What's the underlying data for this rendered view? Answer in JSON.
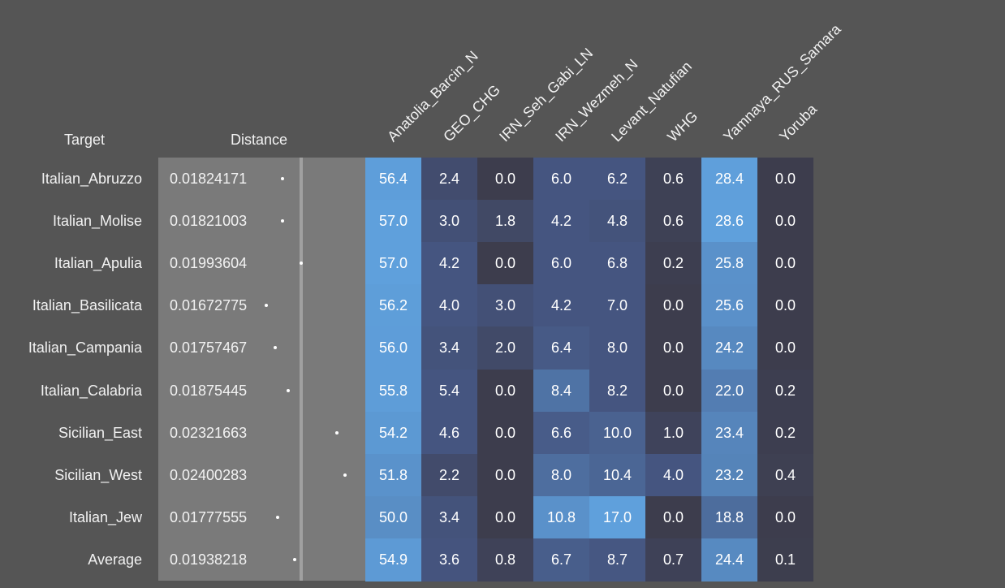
{
  "chart_data": {
    "type": "heatmap",
    "row_header": "Target",
    "distance_header": "Distance",
    "columns": [
      "Anatolia_Barcin_N",
      "GEO_CHG",
      "IRN_Seh_Gabi_LN",
      "IRN_Wezmeh_N",
      "Levant_Natufian",
      "WHG",
      "Yamnaya_RUS_Samara",
      "Yoruba"
    ],
    "rows": [
      {
        "target": "Italian_Abruzzo",
        "distance": "0.01824171",
        "dist_value": 0.01824171,
        "values": [
          "56.4",
          "2.4",
          "0.0",
          "6.0",
          "6.2",
          "0.6",
          "28.4",
          "0.0"
        ]
      },
      {
        "target": "Italian_Molise",
        "distance": "0.01821003",
        "dist_value": 0.01821003,
        "values": [
          "57.0",
          "3.0",
          "1.8",
          "4.2",
          "4.8",
          "0.6",
          "28.6",
          "0.0"
        ]
      },
      {
        "target": "Italian_Apulia",
        "distance": "0.01993604",
        "dist_value": 0.01993604,
        "values": [
          "57.0",
          "4.2",
          "0.0",
          "6.0",
          "6.8",
          "0.2",
          "25.8",
          "0.0"
        ]
      },
      {
        "target": "Italian_Basilicata",
        "distance": "0.01672775",
        "dist_value": 0.01672775,
        "values": [
          "56.2",
          "4.0",
          "3.0",
          "4.2",
          "7.0",
          "0.0",
          "25.6",
          "0.0"
        ]
      },
      {
        "target": "Italian_Campania",
        "distance": "0.01757467",
        "dist_value": 0.01757467,
        "values": [
          "56.0",
          "3.4",
          "2.0",
          "6.4",
          "8.0",
          "0.0",
          "24.2",
          "0.0"
        ]
      },
      {
        "target": "Italian_Calabria",
        "distance": "0.01875445",
        "dist_value": 0.01875445,
        "values": [
          "55.8",
          "5.4",
          "0.0",
          "8.4",
          "8.2",
          "0.0",
          "22.0",
          "0.2"
        ]
      },
      {
        "target": "Sicilian_East",
        "distance": "0.02321663",
        "dist_value": 0.02321663,
        "values": [
          "54.2",
          "4.6",
          "0.0",
          "6.6",
          "10.0",
          "1.0",
          "23.4",
          "0.2"
        ]
      },
      {
        "target": "Sicilian_West",
        "distance": "0.02400283",
        "dist_value": 0.02400283,
        "values": [
          "51.8",
          "2.2",
          "0.0",
          "8.0",
          "10.4",
          "4.0",
          "23.2",
          "0.4"
        ]
      },
      {
        "target": "Italian_Jew",
        "distance": "0.01777555",
        "dist_value": 0.01777555,
        "values": [
          "50.0",
          "3.4",
          "0.0",
          "10.8",
          "17.0",
          "0.0",
          "18.8",
          "0.0"
        ]
      },
      {
        "target": "Average",
        "distance": "0.01938218",
        "dist_value": 0.01938218,
        "values": [
          "54.9",
          "3.6",
          "0.8",
          "6.7",
          "8.7",
          "0.7",
          "24.4",
          "0.1"
        ]
      }
    ],
    "colors": {
      "background": "#555555",
      "distance_panel": "#7a7a7a",
      "scale_low": "#3d3d4d",
      "scale_high": "#5fa0dc"
    }
  }
}
